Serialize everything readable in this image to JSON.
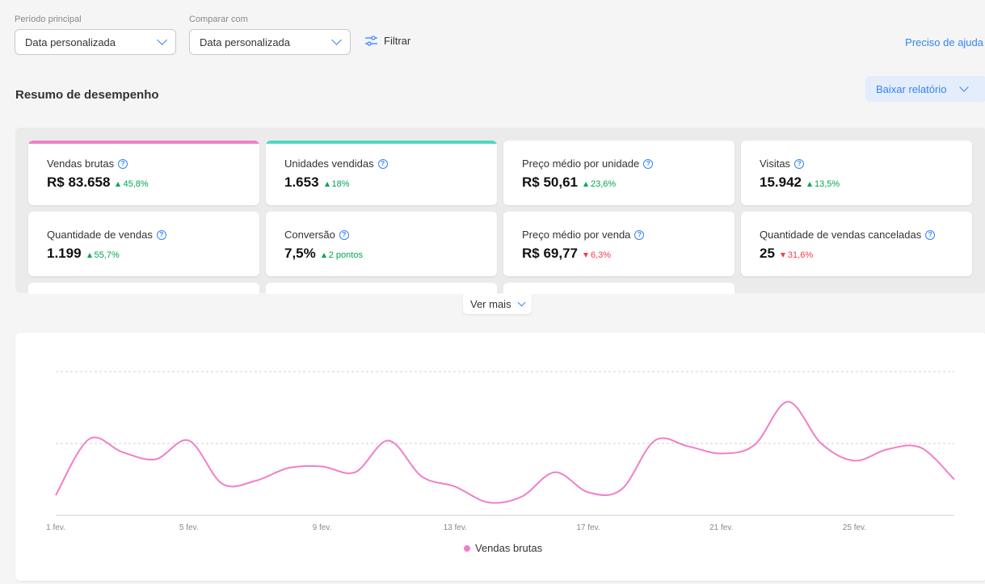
{
  "filters": {
    "main_period": {
      "label": "Período principal",
      "value": "Data personalizada"
    },
    "compare": {
      "label": "Comparar com",
      "value": "Data personalizada"
    },
    "filter_label": "Filtrar",
    "help_link": "Preciso de ajuda"
  },
  "summary": {
    "title": "Resumo de desempenho",
    "download_label": "Baixar relatório"
  },
  "colors": {
    "accent": "#3483fa",
    "pink": "#f07fc8",
    "teal": "#4fd8c5",
    "up": "#00a650",
    "down": "#f23d4f"
  },
  "cards": [
    {
      "label": "Vendas brutas",
      "value": "R$ 83.658",
      "delta": "45,8%",
      "direction": "up",
      "highlight": "pink"
    },
    {
      "label": "Unidades vendidas",
      "value": "1.653",
      "delta": "18%",
      "direction": "up",
      "highlight": "teal"
    },
    {
      "label": "Preço médio por unidade",
      "value": "R$ 50,61",
      "delta": "23,6%",
      "direction": "up"
    },
    {
      "label": "Visitas",
      "value": "15.942",
      "delta": "13,5%",
      "direction": "up"
    },
    {
      "label": "Quantidade de vendas",
      "value": "1.199",
      "delta": "55,7%",
      "direction": "up"
    },
    {
      "label": "Conversão",
      "value": "7,5%",
      "delta": "2 pontos",
      "direction": "up"
    },
    {
      "label": "Preço médio por venda",
      "value": "R$ 69,77",
      "delta": "6,3%",
      "direction": "down"
    },
    {
      "label": "Quantidade de vendas canceladas",
      "value": "25",
      "delta": "31,6%",
      "direction": "down"
    }
  ],
  "ver_mais_label": "Ver mais",
  "chart_data": {
    "type": "line",
    "x_ticks": [
      "1 fev.",
      "5 fev.",
      "9 fev.",
      "13 fev.",
      "17 fev.",
      "21 fev.",
      "25 fev."
    ],
    "x": [
      1,
      2,
      3,
      4,
      5,
      6,
      7,
      8,
      9,
      10,
      11,
      12,
      13,
      14,
      15,
      16,
      17,
      18,
      19,
      20,
      21,
      22,
      23,
      24,
      25,
      26,
      27,
      28
    ],
    "series": [
      {
        "name": "Vendas brutas",
        "color": "#f07fc8",
        "values": [
          14,
          53,
          44,
          39,
          52,
          22,
          24,
          33,
          34,
          30,
          52,
          27,
          20,
          9,
          13,
          30,
          16,
          18,
          52,
          48,
          43,
          49,
          79,
          50,
          38,
          46,
          47,
          25
        ]
      }
    ],
    "ylim": [
      0,
      100
    ],
    "grid": true,
    "legend_position": "bottom"
  }
}
